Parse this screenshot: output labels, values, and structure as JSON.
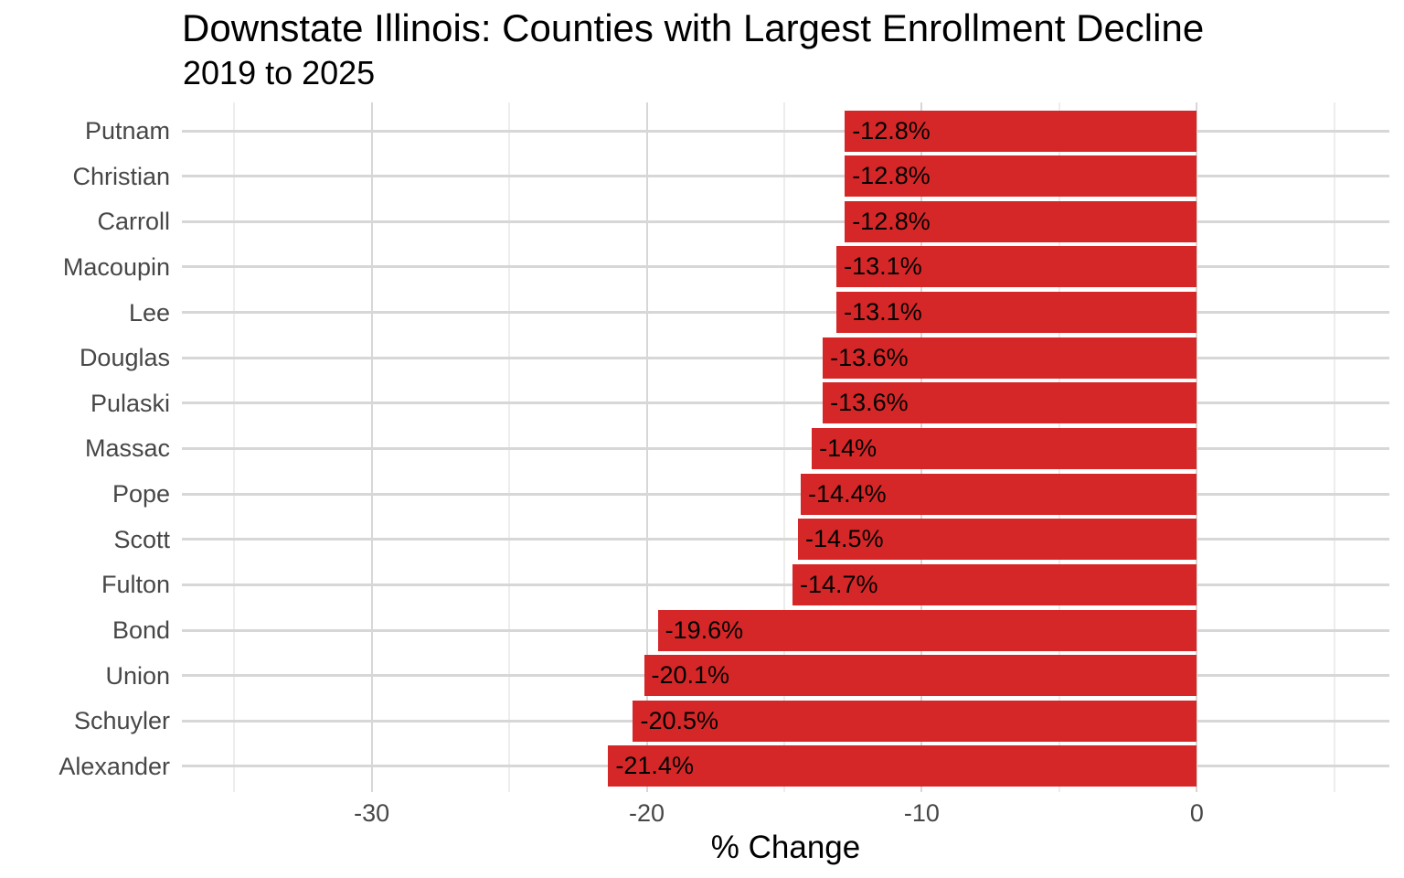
{
  "chart_data": {
    "type": "bar",
    "orientation": "horizontal",
    "title": "Downstate Illinois: Counties with Largest Enrollment Decline",
    "subtitle": "2019 to 2025",
    "xlabel": "% Change",
    "ylabel": "",
    "categories": [
      "Putnam",
      "Christian",
      "Carroll",
      "Macoupin",
      "Lee",
      "Douglas",
      "Pulaski",
      "Massac",
      "Pope",
      "Scott",
      "Fulton",
      "Bond",
      "Union",
      "Schuyler",
      "Alexander"
    ],
    "values": [
      -12.8,
      -12.8,
      -12.8,
      -13.1,
      -13.1,
      -13.6,
      -13.6,
      -14,
      -14.4,
      -14.5,
      -14.7,
      -19.6,
      -20.1,
      -20.5,
      -21.4
    ],
    "bar_labels": [
      "-12.8%",
      "-12.8%",
      "-12.8%",
      "-13.1%",
      "-13.1%",
      "-13.6%",
      "-13.6%",
      "-14%",
      "-14.4%",
      "-14.5%",
      "-14.7%",
      "-19.6%",
      "-20.1%",
      "-20.5%",
      "-21.4%"
    ],
    "xlim": [
      -36.9,
      7.0
    ],
    "x_ticks_major": [
      -30,
      -20,
      -10,
      0
    ],
    "x_tick_labels": [
      "-30",
      "-20",
      "-10",
      "0"
    ],
    "x_ticks_minor": [
      -35,
      -25,
      -15,
      -5,
      5
    ],
    "grid": "on",
    "legend": "none",
    "colors": {
      "bar": "#d62728",
      "bar_label": "#000000",
      "axis_text": "#474747",
      "title_text": "#000000",
      "grid_major": "#d7d7d7",
      "grid_minor": "#ededed",
      "background": "#ffffff"
    }
  }
}
